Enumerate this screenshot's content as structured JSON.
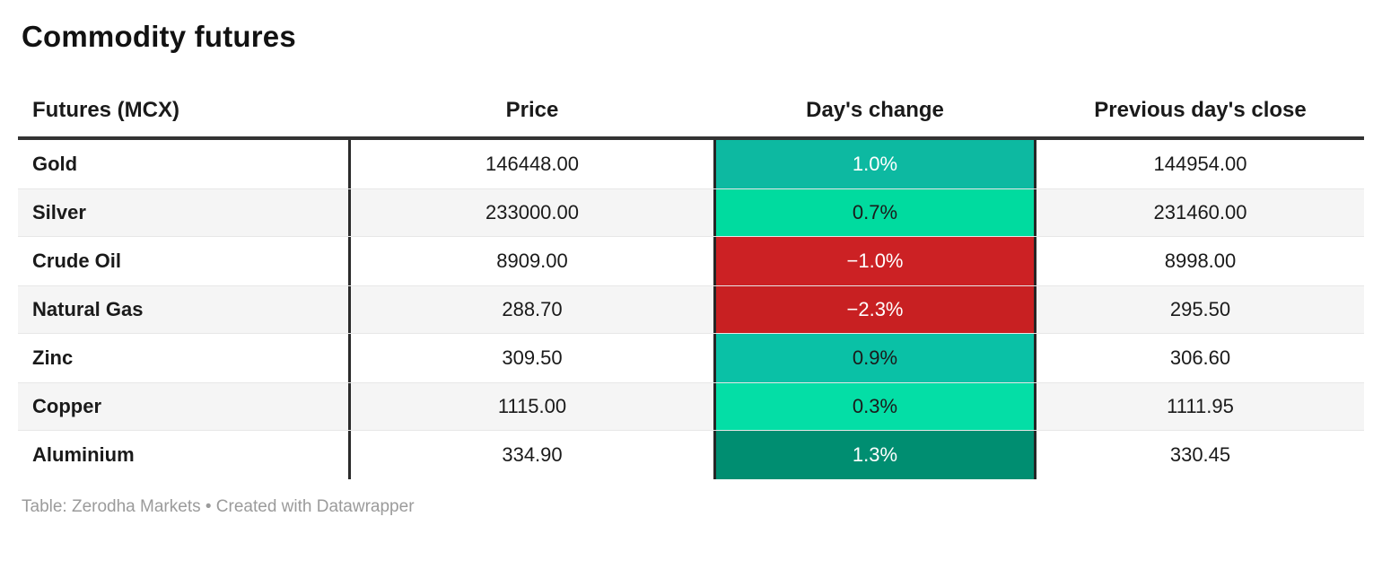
{
  "title": "Commodity futures",
  "table": {
    "columns": {
      "futures": "Futures (MCX)",
      "price": "Price",
      "change": "Day's change",
      "prev_close": "Previous day's close"
    },
    "rows": [
      {
        "name": "Gold",
        "price": "146448.00",
        "change": "1.0%",
        "prev_close": "144954.00",
        "change_bg": "#0db9a1",
        "change_fg": "#ffffff"
      },
      {
        "name": "Silver",
        "price": "233000.00",
        "change": "0.7%",
        "prev_close": "231460.00",
        "change_bg": "#00db9f",
        "change_fg": "#1a1a1a"
      },
      {
        "name": "Crude Oil",
        "price": "8909.00",
        "change": "−1.0%",
        "prev_close": "8998.00",
        "change_bg": "#cc2124",
        "change_fg": "#ffffff"
      },
      {
        "name": "Natural Gas",
        "price": "288.70",
        "change": "−2.3%",
        "prev_close": "295.50",
        "change_bg": "#c82022",
        "change_fg": "#ffffff"
      },
      {
        "name": "Zinc",
        "price": "309.50",
        "change": "0.9%",
        "prev_close": "306.60",
        "change_bg": "#0ac1a6",
        "change_fg": "#1a1a1a"
      },
      {
        "name": "Copper",
        "price": "1115.00",
        "change": "0.3%",
        "prev_close": "1111.95",
        "change_bg": "#04dea6",
        "change_fg": "#1a1a1a"
      },
      {
        "name": "Aluminium",
        "price": "334.90",
        "change": "1.3%",
        "prev_close": "330.45",
        "change_bg": "#008e71",
        "change_fg": "#ffffff"
      }
    ]
  },
  "footer": {
    "attribution": "Table: Zerodha Markets • Created with Datawrapper"
  },
  "colors": {
    "header_border": "#333333",
    "stripe": "#f5f5f5",
    "positive_strong": "#008e71",
    "negative": "#cc2124"
  }
}
